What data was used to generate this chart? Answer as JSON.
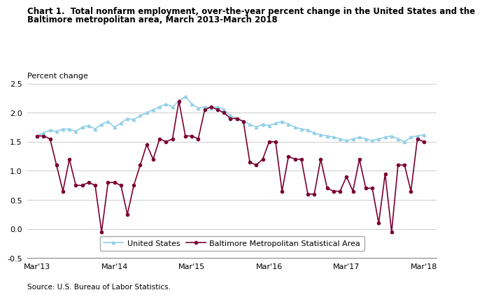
{
  "title_line1": "Chart 1.  Total nonfarm employment, over-the-year percent change in the United States and the",
  "title_line2": "Baltimore metropolitan area, March 2013-March 2018",
  "ylabel": "Percent change",
  "source": "Source: U.S. Bureau of Labor Statistics.",
  "ylim": [
    -0.5,
    2.5
  ],
  "yticks": [
    -0.5,
    0.0,
    0.5,
    1.0,
    1.5,
    2.0,
    2.5
  ],
  "xtick_labels": [
    "Mar'13",
    "Mar'14",
    "Mar'15",
    "Mar'16",
    "Mar'17",
    "Mar'18"
  ],
  "us_color": "#92D0E8",
  "balt_color": "#7B0032",
  "us_label": "United States",
  "balt_label": "Baltimore Metropolitan Statistical Area",
  "us_data": [
    1.6,
    1.65,
    1.7,
    1.68,
    1.72,
    1.72,
    1.68,
    1.75,
    1.78,
    1.72,
    1.8,
    1.85,
    1.75,
    1.82,
    1.9,
    1.88,
    1.95,
    2.0,
    2.05,
    2.1,
    2.15,
    2.1,
    2.2,
    2.28,
    2.15,
    2.08,
    2.1,
    2.08,
    2.1,
    2.05,
    1.95,
    1.9,
    1.85,
    1.8,
    1.75,
    1.8,
    1.78,
    1.82,
    1.85,
    1.8,
    1.75,
    1.72,
    1.7,
    1.65,
    1.62,
    1.6,
    1.58,
    1.55,
    1.52,
    1.55,
    1.58,
    1.55,
    1.52,
    1.55,
    1.58,
    1.6,
    1.55,
    1.5,
    1.58,
    1.6,
    1.62
  ],
  "balt_data": [
    1.6,
    1.6,
    1.55,
    1.1,
    0.65,
    1.2,
    0.75,
    0.75,
    0.8,
    0.75,
    -0.05,
    0.8,
    0.8,
    0.75,
    0.25,
    0.75,
    1.1,
    1.45,
    1.2,
    1.55,
    1.5,
    1.55,
    2.2,
    1.6,
    1.6,
    1.55,
    2.05,
    2.1,
    2.05,
    2.0,
    1.9,
    1.9,
    1.85,
    1.15,
    1.1,
    1.2,
    1.5,
    1.5,
    0.65,
    1.25,
    1.2,
    1.2,
    0.6,
    0.6,
    1.2,
    0.7,
    0.65,
    0.65,
    0.9,
    0.65,
    1.2,
    0.7,
    0.7,
    0.1,
    0.95,
    -0.05,
    1.1,
    1.1,
    0.65,
    1.55,
    1.5
  ]
}
